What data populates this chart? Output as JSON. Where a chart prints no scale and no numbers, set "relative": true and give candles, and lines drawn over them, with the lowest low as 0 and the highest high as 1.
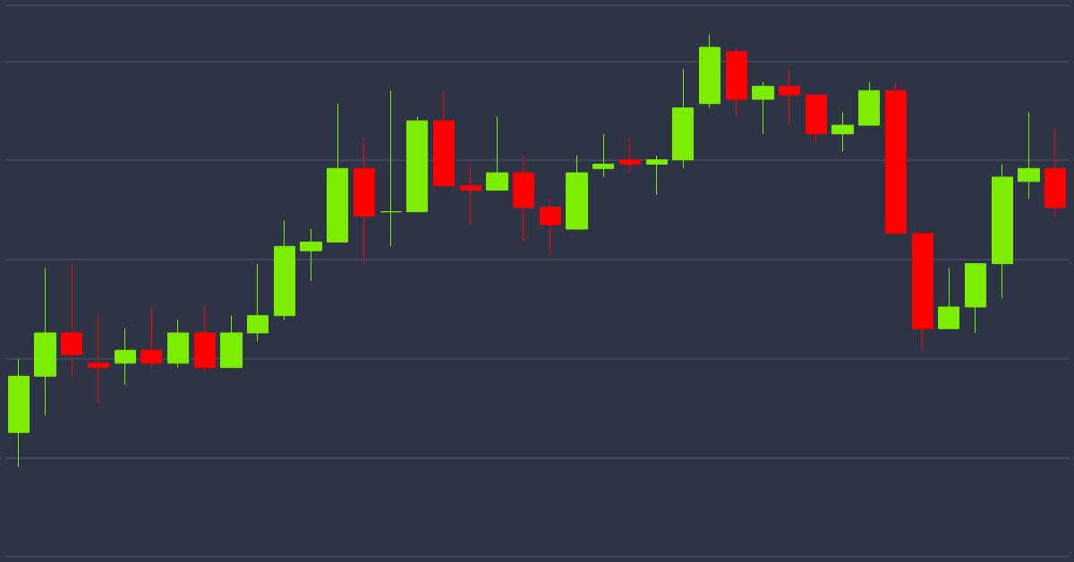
{
  "chart_data": {
    "type": "candlestick",
    "relative": true,
    "grid": "y",
    "categories": [
      null,
      null,
      null,
      null,
      null,
      null,
      null,
      null,
      null,
      null,
      null,
      null,
      null,
      null,
      null,
      null,
      null,
      null,
      null,
      null,
      null,
      null,
      null,
      null,
      null,
      null,
      null,
      null,
      null,
      null,
      null,
      null,
      null,
      null,
      null,
      null,
      null,
      null,
      null,
      null
    ],
    "ohlc": [
      [
        0.08,
        0.25,
        0,
        0.21
      ],
      [
        0.21,
        0.46,
        0.12,
        0.31
      ],
      [
        0.31,
        0.47,
        0.21,
        0.26
      ],
      [
        0.24,
        0.35,
        0.15,
        0.23
      ],
      [
        0.24,
        0.32,
        0.19,
        0.27
      ],
      [
        0.27,
        0.37,
        0.23,
        0.24
      ],
      [
        0.24,
        0.34,
        0.23,
        0.31
      ],
      [
        0.31,
        0.37,
        0.22,
        0.23
      ],
      [
        0.23,
        0.35,
        0.23,
        0.31
      ],
      [
        0.31,
        0.47,
        0.29,
        0.35
      ],
      [
        0.35,
        0.57,
        0.34,
        0.51
      ],
      [
        0.5,
        0.55,
        0.43,
        0.52
      ],
      [
        0.52,
        0.84,
        0.52,
        0.69
      ],
      [
        0.69,
        0.76,
        0.47,
        0.58
      ],
      [
        0.59,
        0.87,
        0.51,
        0.59
      ],
      [
        0.59,
        0.81,
        0.59,
        0.8
      ],
      [
        0.8,
        0.87,
        0.65,
        0.65
      ],
      [
        0.65,
        0.7,
        0.56,
        0.64
      ],
      [
        0.64,
        0.81,
        0.64,
        0.68
      ],
      [
        0.68,
        0.72,
        0.52,
        0.6
      ],
      [
        0.6,
        0.62,
        0.49,
        0.56
      ],
      [
        0.55,
        0.72,
        0.55,
        0.68
      ],
      [
        0.69,
        0.77,
        0.67,
        0.7
      ],
      [
        0.71,
        0.76,
        0.68,
        0.7
      ],
      [
        0.7,
        0.72,
        0.63,
        0.71
      ],
      [
        0.71,
        0.92,
        0.69,
        0.83
      ],
      [
        0.84,
        1,
        0.83,
        0.97
      ],
      [
        0.96,
        0.97,
        0.81,
        0.85
      ],
      [
        0.85,
        0.89,
        0.77,
        0.88
      ],
      [
        0.88,
        0.92,
        0.79,
        0.86
      ],
      [
        0.86,
        0.86,
        0.75,
        0.77
      ],
      [
        0.77,
        0.82,
        0.73,
        0.79
      ],
      [
        0.79,
        0.89,
        0.79,
        0.87
      ],
      [
        0.87,
        0.89,
        0.54,
        0.54
      ],
      [
        0.54,
        0.54,
        0.27,
        0.32
      ],
      [
        0.32,
        0.46,
        0.32,
        0.37
      ],
      [
        0.37,
        0.47,
        0.31,
        0.47
      ],
      [
        0.47,
        0.7,
        0.39,
        0.67
      ],
      [
        0.66,
        0.82,
        0.62,
        0.69
      ],
      [
        0.69,
        0.78,
        0.58,
        0.6
      ]
    ],
    "colors": [
      "#7ded00",
      "#7ded00",
      "#ff0000",
      "#ff0000",
      "#7ded00",
      "#ff0000",
      "#7ded00",
      "#ff0000",
      "#7ded00",
      "#7ded00",
      "#7ded00",
      "#7ded00",
      "#7ded00",
      "#ff0000",
      "#7ded00",
      "#7ded00",
      "#ff0000",
      "#ff0000",
      "#7ded00",
      "#ff0000",
      "#ff0000",
      "#7ded00",
      "#7ded00",
      "#ff0000",
      "#7ded00",
      "#7ded00",
      "#7ded00",
      "#ff0000",
      "#7ded00",
      "#ff0000",
      "#ff0000",
      "#7ded00",
      "#7ded00",
      "#ff0000",
      "#ff0000",
      "#7ded00",
      "#7ded00",
      "#7ded00",
      "#7ded00",
      "#ff0000"
    ]
  }
}
